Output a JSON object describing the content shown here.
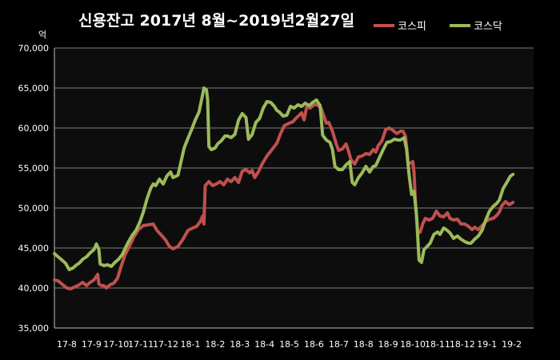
{
  "chart_data": {
    "type": "line",
    "title": "신용잔고 2017년 8월~2019년2월27일",
    "ylabel": "억",
    "ylim": [
      35000,
      70000
    ],
    "yticks": [
      "35,000",
      "40,000",
      "45,000",
      "50,000",
      "55,000",
      "60,000",
      "65,000",
      "70,000"
    ],
    "categories": [
      "17-8",
      "17-9",
      "17-10",
      "17-11",
      "17-12",
      "18-1",
      "18-2",
      "18-3",
      "18-4",
      "18-5",
      "18-6",
      "18-7",
      "18-8",
      "18-9",
      "18-10",
      "18-11",
      "18-12",
      "19-1",
      "19-2"
    ],
    "grid": true,
    "legend_position": "top-right",
    "series": [
      {
        "name": "코스피",
        "color": "#c0504d",
        "values": [
          [
            0.0,
            41000
          ],
          [
            0.15,
            40900
          ],
          [
            0.3,
            40500
          ],
          [
            0.5,
            40000
          ],
          [
            0.65,
            39900
          ],
          [
            0.8,
            40100
          ],
          [
            1.0,
            40400
          ],
          [
            1.15,
            40700
          ],
          [
            1.3,
            40300
          ],
          [
            1.45,
            40700
          ],
          [
            1.6,
            41000
          ],
          [
            1.75,
            41700
          ],
          [
            1.8,
            40500
          ],
          [
            1.9,
            40300
          ],
          [
            2.0,
            40300
          ],
          [
            2.1,
            40000
          ],
          [
            2.25,
            40400
          ],
          [
            2.4,
            40600
          ],
          [
            2.55,
            41200
          ],
          [
            2.7,
            42700
          ],
          [
            2.85,
            44100
          ],
          [
            3.0,
            45000
          ],
          [
            3.2,
            46300
          ],
          [
            3.4,
            47300
          ],
          [
            3.6,
            47800
          ],
          [
            3.8,
            47900
          ],
          [
            4.0,
            48000
          ],
          [
            4.15,
            47200
          ],
          [
            4.3,
            46700
          ],
          [
            4.5,
            46000
          ],
          [
            4.65,
            45200
          ],
          [
            4.8,
            44900
          ],
          [
            5.0,
            45200
          ],
          [
            5.2,
            46100
          ],
          [
            5.4,
            47200
          ],
          [
            5.6,
            47500
          ],
          [
            5.75,
            47700
          ],
          [
            5.9,
            48300
          ],
          [
            6.0,
            49000
          ],
          [
            6.05,
            48000
          ],
          [
            6.1,
            52800
          ],
          [
            6.25,
            53300
          ],
          [
            6.4,
            52800
          ],
          [
            6.55,
            53000
          ],
          [
            6.7,
            53300
          ],
          [
            6.85,
            52900
          ],
          [
            7.0,
            53600
          ],
          [
            7.15,
            53300
          ],
          [
            7.3,
            53800
          ],
          [
            7.45,
            53200
          ],
          [
            7.6,
            54600
          ],
          [
            7.75,
            54800
          ],
          [
            7.9,
            54400
          ],
          [
            8.0,
            54700
          ],
          [
            8.1,
            53800
          ],
          [
            8.25,
            54500
          ],
          [
            8.4,
            55500
          ],
          [
            8.6,
            56500
          ],
          [
            8.8,
            57300
          ],
          [
            9.0,
            58100
          ],
          [
            9.15,
            59300
          ],
          [
            9.3,
            60300
          ],
          [
            9.5,
            60600
          ],
          [
            9.65,
            60800
          ],
          [
            9.8,
            61300
          ],
          [
            10.0,
            61900
          ],
          [
            10.1,
            61000
          ],
          [
            10.2,
            62600
          ],
          [
            10.35,
            62500
          ],
          [
            10.5,
            62900
          ],
          [
            10.65,
            62900
          ],
          [
            10.8,
            62400
          ],
          [
            11.0,
            60600
          ],
          [
            11.1,
            60700
          ],
          [
            11.25,
            59600
          ],
          [
            11.4,
            58000
          ],
          [
            11.5,
            57200
          ],
          [
            11.65,
            57400
          ],
          [
            11.8,
            58000
          ],
          [
            11.9,
            57100
          ],
          [
            12.0,
            56000
          ],
          [
            12.15,
            55500
          ],
          [
            12.3,
            56400
          ],
          [
            12.45,
            56500
          ],
          [
            12.6,
            56800
          ],
          [
            12.75,
            56700
          ],
          [
            12.9,
            57300
          ],
          [
            13.0,
            57000
          ],
          [
            13.1,
            57800
          ],
          [
            13.25,
            58400
          ],
          [
            13.4,
            59800
          ],
          [
            13.55,
            60000
          ],
          [
            13.7,
            59700
          ],
          [
            13.85,
            59300
          ],
          [
            14.0,
            59600
          ],
          [
            14.1,
            59600
          ],
          [
            14.2,
            59000
          ],
          [
            14.25,
            57600
          ],
          [
            14.3,
            55700
          ],
          [
            14.4,
            55600
          ],
          [
            14.5,
            55800
          ],
          [
            14.55,
            54400
          ],
          [
            14.6,
            51100
          ],
          [
            14.7,
            46800
          ],
          [
            14.8,
            47000
          ],
          [
            14.9,
            48000
          ],
          [
            15.0,
            48700
          ],
          [
            15.15,
            48500
          ],
          [
            15.3,
            48700
          ],
          [
            15.45,
            49600
          ],
          [
            15.6,
            49000
          ],
          [
            15.75,
            48900
          ],
          [
            15.9,
            49400
          ],
          [
            16.0,
            48700
          ],
          [
            16.15,
            48500
          ],
          [
            16.3,
            48600
          ],
          [
            16.45,
            48000
          ],
          [
            16.6,
            48000
          ],
          [
            16.75,
            47700
          ],
          [
            16.9,
            47300
          ],
          [
            17.0,
            47600
          ],
          [
            17.15,
            47300
          ],
          [
            17.3,
            47800
          ],
          [
            17.45,
            48300
          ],
          [
            17.6,
            48600
          ],
          [
            17.75,
            48700
          ],
          [
            17.9,
            49100
          ],
          [
            18.0,
            49500
          ],
          [
            18.1,
            50300
          ],
          [
            18.25,
            50800
          ],
          [
            18.4,
            50400
          ],
          [
            18.55,
            50700
          ]
        ]
      },
      {
        "name": "코스닥",
        "color": "#9bbb59",
        "values": [
          [
            0.0,
            44300
          ],
          [
            0.15,
            43900
          ],
          [
            0.3,
            43500
          ],
          [
            0.45,
            43100
          ],
          [
            0.6,
            42300
          ],
          [
            0.75,
            42500
          ],
          [
            0.9,
            42900
          ],
          [
            1.0,
            43100
          ],
          [
            1.15,
            43600
          ],
          [
            1.3,
            43900
          ],
          [
            1.45,
            44400
          ],
          [
            1.6,
            44800
          ],
          [
            1.7,
            45500
          ],
          [
            1.8,
            44800
          ],
          [
            1.85,
            43000
          ],
          [
            2.0,
            42800
          ],
          [
            2.15,
            42900
          ],
          [
            2.3,
            42700
          ],
          [
            2.45,
            43200
          ],
          [
            2.6,
            43600
          ],
          [
            2.75,
            44200
          ],
          [
            2.9,
            45200
          ],
          [
            3.0,
            45800
          ],
          [
            3.15,
            46600
          ],
          [
            3.3,
            47200
          ],
          [
            3.45,
            48200
          ],
          [
            3.6,
            49500
          ],
          [
            3.75,
            51200
          ],
          [
            3.9,
            52500
          ],
          [
            4.0,
            53000
          ],
          [
            4.1,
            52800
          ],
          [
            4.25,
            53600
          ],
          [
            4.4,
            53000
          ],
          [
            4.55,
            54000
          ],
          [
            4.7,
            54500
          ],
          [
            4.8,
            53800
          ],
          [
            5.0,
            54100
          ],
          [
            5.1,
            55500
          ],
          [
            5.25,
            57500
          ],
          [
            5.4,
            58700
          ],
          [
            5.55,
            59800
          ],
          [
            5.7,
            61000
          ],
          [
            5.85,
            62000
          ],
          [
            5.95,
            63500
          ],
          [
            6.05,
            65000
          ],
          [
            6.15,
            64800
          ],
          [
            6.2,
            63500
          ],
          [
            6.25,
            57700
          ],
          [
            6.35,
            57300
          ],
          [
            6.5,
            57500
          ],
          [
            6.6,
            58000
          ],
          [
            6.75,
            58400
          ],
          [
            6.9,
            59000
          ],
          [
            7.0,
            59000
          ],
          [
            7.15,
            58800
          ],
          [
            7.3,
            59200
          ],
          [
            7.45,
            61000
          ],
          [
            7.6,
            61800
          ],
          [
            7.75,
            61300
          ],
          [
            7.85,
            58600
          ],
          [
            8.0,
            59200
          ],
          [
            8.15,
            60700
          ],
          [
            8.3,
            61200
          ],
          [
            8.45,
            62500
          ],
          [
            8.6,
            63300
          ],
          [
            8.75,
            63200
          ],
          [
            8.9,
            62700
          ],
          [
            9.0,
            62200
          ],
          [
            9.1,
            62000
          ],
          [
            9.25,
            61500
          ],
          [
            9.4,
            61600
          ],
          [
            9.55,
            62700
          ],
          [
            9.7,
            62500
          ],
          [
            9.85,
            62900
          ],
          [
            10.0,
            62700
          ],
          [
            10.15,
            63100
          ],
          [
            10.3,
            62800
          ],
          [
            10.45,
            63200
          ],
          [
            10.6,
            63500
          ],
          [
            10.75,
            62800
          ],
          [
            10.85,
            59100
          ],
          [
            11.0,
            58500
          ],
          [
            11.15,
            58200
          ],
          [
            11.25,
            57300
          ],
          [
            11.35,
            55200
          ],
          [
            11.5,
            54800
          ],
          [
            11.65,
            54800
          ],
          [
            11.8,
            55400
          ],
          [
            11.95,
            55800
          ],
          [
            12.05,
            53200
          ],
          [
            12.15,
            52900
          ],
          [
            12.3,
            53800
          ],
          [
            12.45,
            54400
          ],
          [
            12.6,
            55200
          ],
          [
            12.75,
            54500
          ],
          [
            12.9,
            55200
          ],
          [
            13.0,
            55300
          ],
          [
            13.15,
            56300
          ],
          [
            13.3,
            57300
          ],
          [
            13.45,
            58200
          ],
          [
            13.6,
            58300
          ],
          [
            13.75,
            58600
          ],
          [
            13.9,
            58500
          ],
          [
            14.0,
            58500
          ],
          [
            14.15,
            58800
          ],
          [
            14.25,
            57300
          ],
          [
            14.35,
            54100
          ],
          [
            14.45,
            51700
          ],
          [
            14.55,
            52100
          ],
          [
            14.65,
            49000
          ],
          [
            14.75,
            43500
          ],
          [
            14.85,
            43200
          ],
          [
            14.95,
            44800
          ],
          [
            15.05,
            45100
          ],
          [
            15.2,
            45600
          ],
          [
            15.35,
            46700
          ],
          [
            15.5,
            47000
          ],
          [
            15.6,
            46700
          ],
          [
            15.75,
            47500
          ],
          [
            15.85,
            47300
          ],
          [
            16.0,
            46900
          ],
          [
            16.15,
            46200
          ],
          [
            16.3,
            46500
          ],
          [
            16.45,
            46100
          ],
          [
            16.6,
            45800
          ],
          [
            16.75,
            45600
          ],
          [
            16.85,
            45600
          ],
          [
            17.0,
            46100
          ],
          [
            17.15,
            46500
          ],
          [
            17.3,
            47200
          ],
          [
            17.45,
            48500
          ],
          [
            17.6,
            49600
          ],
          [
            17.75,
            50200
          ],
          [
            17.9,
            50600
          ],
          [
            18.0,
            51000
          ],
          [
            18.15,
            52400
          ],
          [
            18.3,
            53200
          ],
          [
            18.45,
            54000
          ],
          [
            18.55,
            54200
          ]
        ]
      }
    ]
  }
}
